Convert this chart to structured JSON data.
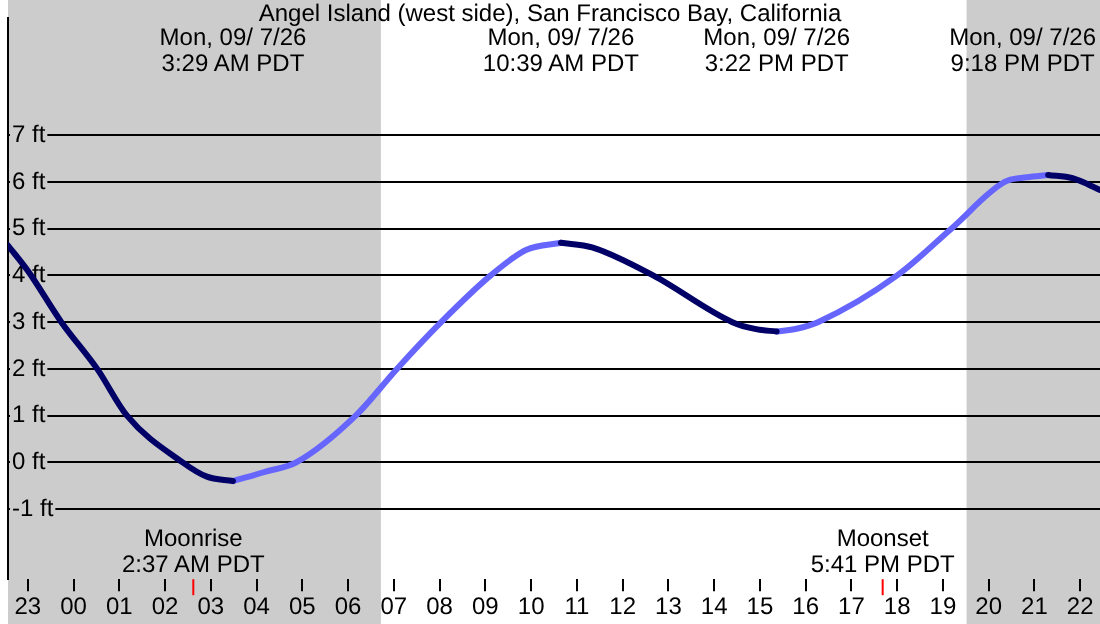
{
  "chart_data": {
    "type": "line",
    "title": "Angel Island (west side), San Francisco Bay, California",
    "series": [
      {
        "color": "#000066",
        "x": [
          "--09-06T22:34",
          "--09-06T23:00",
          "--09-06T23:44",
          "--09-07T00:31",
          "--09-07T01:10",
          "--09-07T02:23",
          "--09-07T02:54",
          "--09-07T03:29",
          "--09-07T07:00",
          "--09-07T10:39",
          "--09-07T11:20",
          "--09-07T12:40",
          "--09-07T14:24",
          "--09-07T14:55",
          "--09-07T15:22",
          "--09-07T18:00",
          "--09-07T21:18",
          "--09-07T21:50",
          "--09-07T22:26"
        ],
        "values": [
          4.64,
          4.1,
          3,
          2,
          1,
          0,
          -0.3,
          -0.4,
          null,
          4.7,
          4.6,
          4,
          3,
          2.85,
          2.8,
          null,
          6.15,
          6.08,
          5.83
        ]
      },
      {
        "color": "#6666ff",
        "x": [
          "--09-07T03:29",
          "--09-07T04:12",
          "--09-07T04:52",
          "--09-07T06:10",
          "--09-07T07:04",
          "--09-07T08:02",
          "--09-07T09:07",
          "--09-07T09:54",
          "--09-07T10:39",
          "--09-07T13:00",
          "--09-07T15:22",
          "--09-07T15:48",
          "--09-07T16:16",
          "--09-07T18:00",
          "--09-07T19:11",
          "--09-07T20:21",
          "--09-07T20:50",
          "--09-07T21:18"
        ],
        "values": [
          -0.4,
          -0.2,
          0,
          1,
          2,
          3,
          4,
          4.55,
          4.7,
          null,
          2.8,
          2.86,
          3,
          4,
          5,
          6,
          6.1,
          6.15
        ]
      }
    ],
    "xlim": [
      "--09-06T22:34",
      "--09-07T22:26"
    ],
    "xticks": [
      {
        "value": "--09-06T23:00",
        "label": "23"
      },
      {
        "value": "--09-07T00:00",
        "label": "00"
      },
      {
        "value": "--09-07T01:00",
        "label": "01"
      },
      {
        "value": "--09-07T02:00",
        "label": "02"
      },
      {
        "value": "--09-07T03:00",
        "label": "03"
      },
      {
        "value": "--09-07T04:00",
        "label": "04"
      },
      {
        "value": "--09-07T05:00",
        "label": "05"
      },
      {
        "value": "--09-07T06:00",
        "label": "06"
      },
      {
        "value": "--09-07T07:00",
        "label": "07"
      },
      {
        "value": "--09-07T08:00",
        "label": "08"
      },
      {
        "value": "--09-07T09:00",
        "label": "09"
      },
      {
        "value": "--09-07T10:00",
        "label": "10"
      },
      {
        "value": "--09-07T11:00",
        "label": "11"
      },
      {
        "value": "--09-07T12:00",
        "label": "12"
      },
      {
        "value": "--09-07T13:00",
        "label": "13"
      },
      {
        "value": "--09-07T14:00",
        "label": "14"
      },
      {
        "value": "--09-07T15:00",
        "label": "15"
      },
      {
        "value": "--09-07T16:00",
        "label": "16"
      },
      {
        "value": "--09-07T17:00",
        "label": "17"
      },
      {
        "value": "--09-07T18:00",
        "label": "18"
      },
      {
        "value": "--09-07T19:00",
        "label": "19"
      },
      {
        "value": "--09-07T20:00",
        "label": "20"
      },
      {
        "value": "--09-07T21:00",
        "label": "21"
      },
      {
        "value": "--09-07T22:00",
        "label": "22"
      }
    ],
    "ylim": [
      -2.5,
      9.5
    ],
    "yticks": [
      {
        "value": -1,
        "label": "-1 ft"
      },
      {
        "value": 0,
        "label": "0 ft"
      },
      {
        "value": 1,
        "label": "1 ft"
      },
      {
        "value": 2,
        "label": "2 ft"
      },
      {
        "value": 3,
        "label": "3 ft"
      },
      {
        "value": 4,
        "label": "4 ft"
      },
      {
        "value": 5,
        "label": "5 ft"
      },
      {
        "value": 6,
        "label": "6 ft"
      },
      {
        "value": 7,
        "label": "7 ft"
      }
    ],
    "grid": "y",
    "legend": false,
    "marker": "none",
    "line_style": "solid",
    "bands": [
      {
        "axis": "x",
        "from": "--09-06T22:34",
        "to": "--09-07T06:43",
        "color": "#cccccc"
      },
      {
        "axis": "x",
        "from": "--09-07T19:31",
        "to": "--09-07T22:26",
        "color": "#cccccc"
      }
    ],
    "ref_lines": [
      {
        "axis": "x",
        "value": "--09-07T02:37",
        "label": "Moonrise\n2:37 AM PDT",
        "color": "#ff0000"
      },
      {
        "axis": "x",
        "value": "--09-07T17:41",
        "label": "Moonset\n5:41 PM PDT",
        "color": "#ff0000"
      }
    ],
    "annotations": [
      "Mon, 09/ 7/26\n3:29 AM PDT",
      "Mon, 09/ 7/26\n10:39 AM PDT",
      "Mon, 09/ 7/26\n3:22 PM PDT",
      "Mon, 09/ 7/26\n9:18 PM PDT"
    ]
  }
}
